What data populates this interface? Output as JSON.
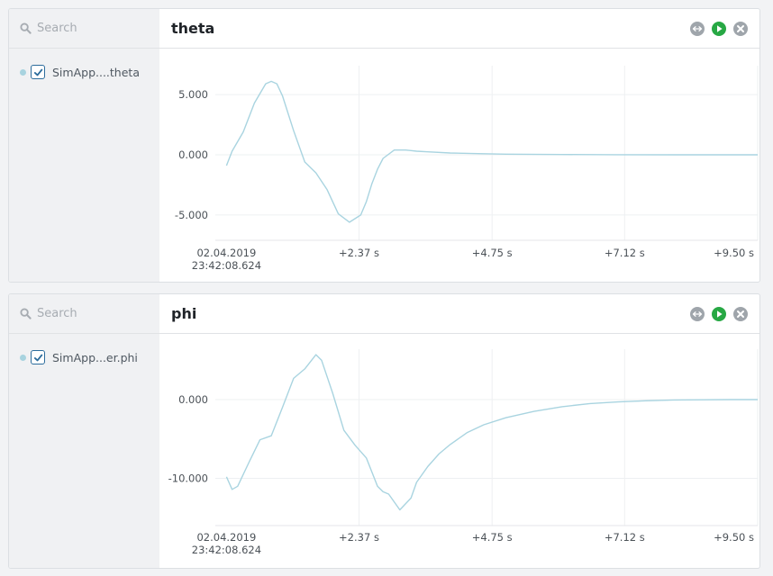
{
  "panels": [
    {
      "search_placeholder": "Search",
      "title": "theta",
      "signal_label": "SimApp....theta",
      "signal_checked": true,
      "series_color": "#a9d4e0",
      "chart_data": {
        "type": "line",
        "xlabel": "",
        "ylabel": "",
        "x_tick_labels": [
          "02.04.2019\n23:42:08.624",
          "+2.37 s",
          "+4.75 s",
          "+7.12 s",
          "+9.50 s"
        ],
        "x_ticks": [
          0,
          2.37,
          4.75,
          7.12,
          9.5
        ],
        "y_tick_labels": [
          "5.000",
          "0.000",
          "-5.000"
        ],
        "y_ticks": [
          5,
          0,
          -5
        ],
        "xlim": [
          -0.2,
          9.5
        ],
        "ylim": [
          -7.1,
          7.4
        ],
        "grid": true,
        "series": [
          {
            "x": [
              0,
              0.1,
              0.3,
              0.5,
              0.7,
              0.8,
              0.9,
              1.0,
              1.2,
              1.4,
              1.6,
              1.8,
              2.0,
              2.2,
              2.4,
              2.5,
              2.6,
              2.7,
              2.8,
              3.0,
              3.2,
              3.3,
              3.4,
              3.6,
              4.0,
              4.5,
              5.0,
              6.0,
              7.0,
              8.0,
              9.5
            ],
            "y": [
              -0.9,
              0.3,
              1.9,
              4.3,
              5.9,
              6.1,
              5.9,
              4.9,
              2.0,
              -0.6,
              -1.5,
              -2.9,
              -4.9,
              -5.6,
              -5.0,
              -3.9,
              -2.4,
              -1.2,
              -0.3,
              0.4,
              0.4,
              0.35,
              0.3,
              0.25,
              0.15,
              0.1,
              0.05,
              0.02,
              0.01,
              0.0,
              0.0
            ]
          }
        ]
      }
    },
    {
      "search_placeholder": "Search",
      "title": "phi",
      "signal_label": "SimApp...er.phi",
      "signal_checked": true,
      "series_color": "#a9d4e0",
      "chart_data": {
        "type": "line",
        "xlabel": "",
        "ylabel": "",
        "x_tick_labels": [
          "02.04.2019\n23:42:08.624",
          "+2.37 s",
          "+4.75 s",
          "+7.12 s",
          "+9.50 s"
        ],
        "x_ticks": [
          0,
          2.37,
          4.75,
          7.12,
          9.5
        ],
        "y_tick_labels": [
          "0.000",
          "-10.000"
        ],
        "y_ticks": [
          0,
          -10
        ],
        "xlim": [
          -0.2,
          9.5
        ],
        "ylim": [
          -16.0,
          6.4
        ],
        "grid": true,
        "series": [
          {
            "x": [
              0,
              0.1,
              0.2,
              0.4,
              0.6,
              0.8,
              1.0,
              1.2,
              1.4,
              1.6,
              1.7,
              1.9,
              2.1,
              2.3,
              2.5,
              2.7,
              2.8,
              2.9,
              3.1,
              3.3,
              3.4,
              3.6,
              3.8,
              4.0,
              4.3,
              4.6,
              5.0,
              5.5,
              6.0,
              6.5,
              7.0,
              7.5,
              8.0,
              9.0,
              9.5
            ],
            "y": [
              -9.8,
              -11.4,
              -11.0,
              -8.0,
              -5.1,
              -4.6,
              -1.0,
              2.7,
              3.9,
              5.7,
              5.0,
              0.8,
              -3.9,
              -5.8,
              -7.4,
              -11.0,
              -11.7,
              -12.0,
              -14.0,
              -12.5,
              -10.5,
              -8.5,
              -6.9,
              -5.7,
              -4.2,
              -3.2,
              -2.3,
              -1.5,
              -0.9,
              -0.5,
              -0.3,
              -0.15,
              -0.05,
              0.0,
              0.0
            ]
          }
        ]
      }
    }
  ]
}
